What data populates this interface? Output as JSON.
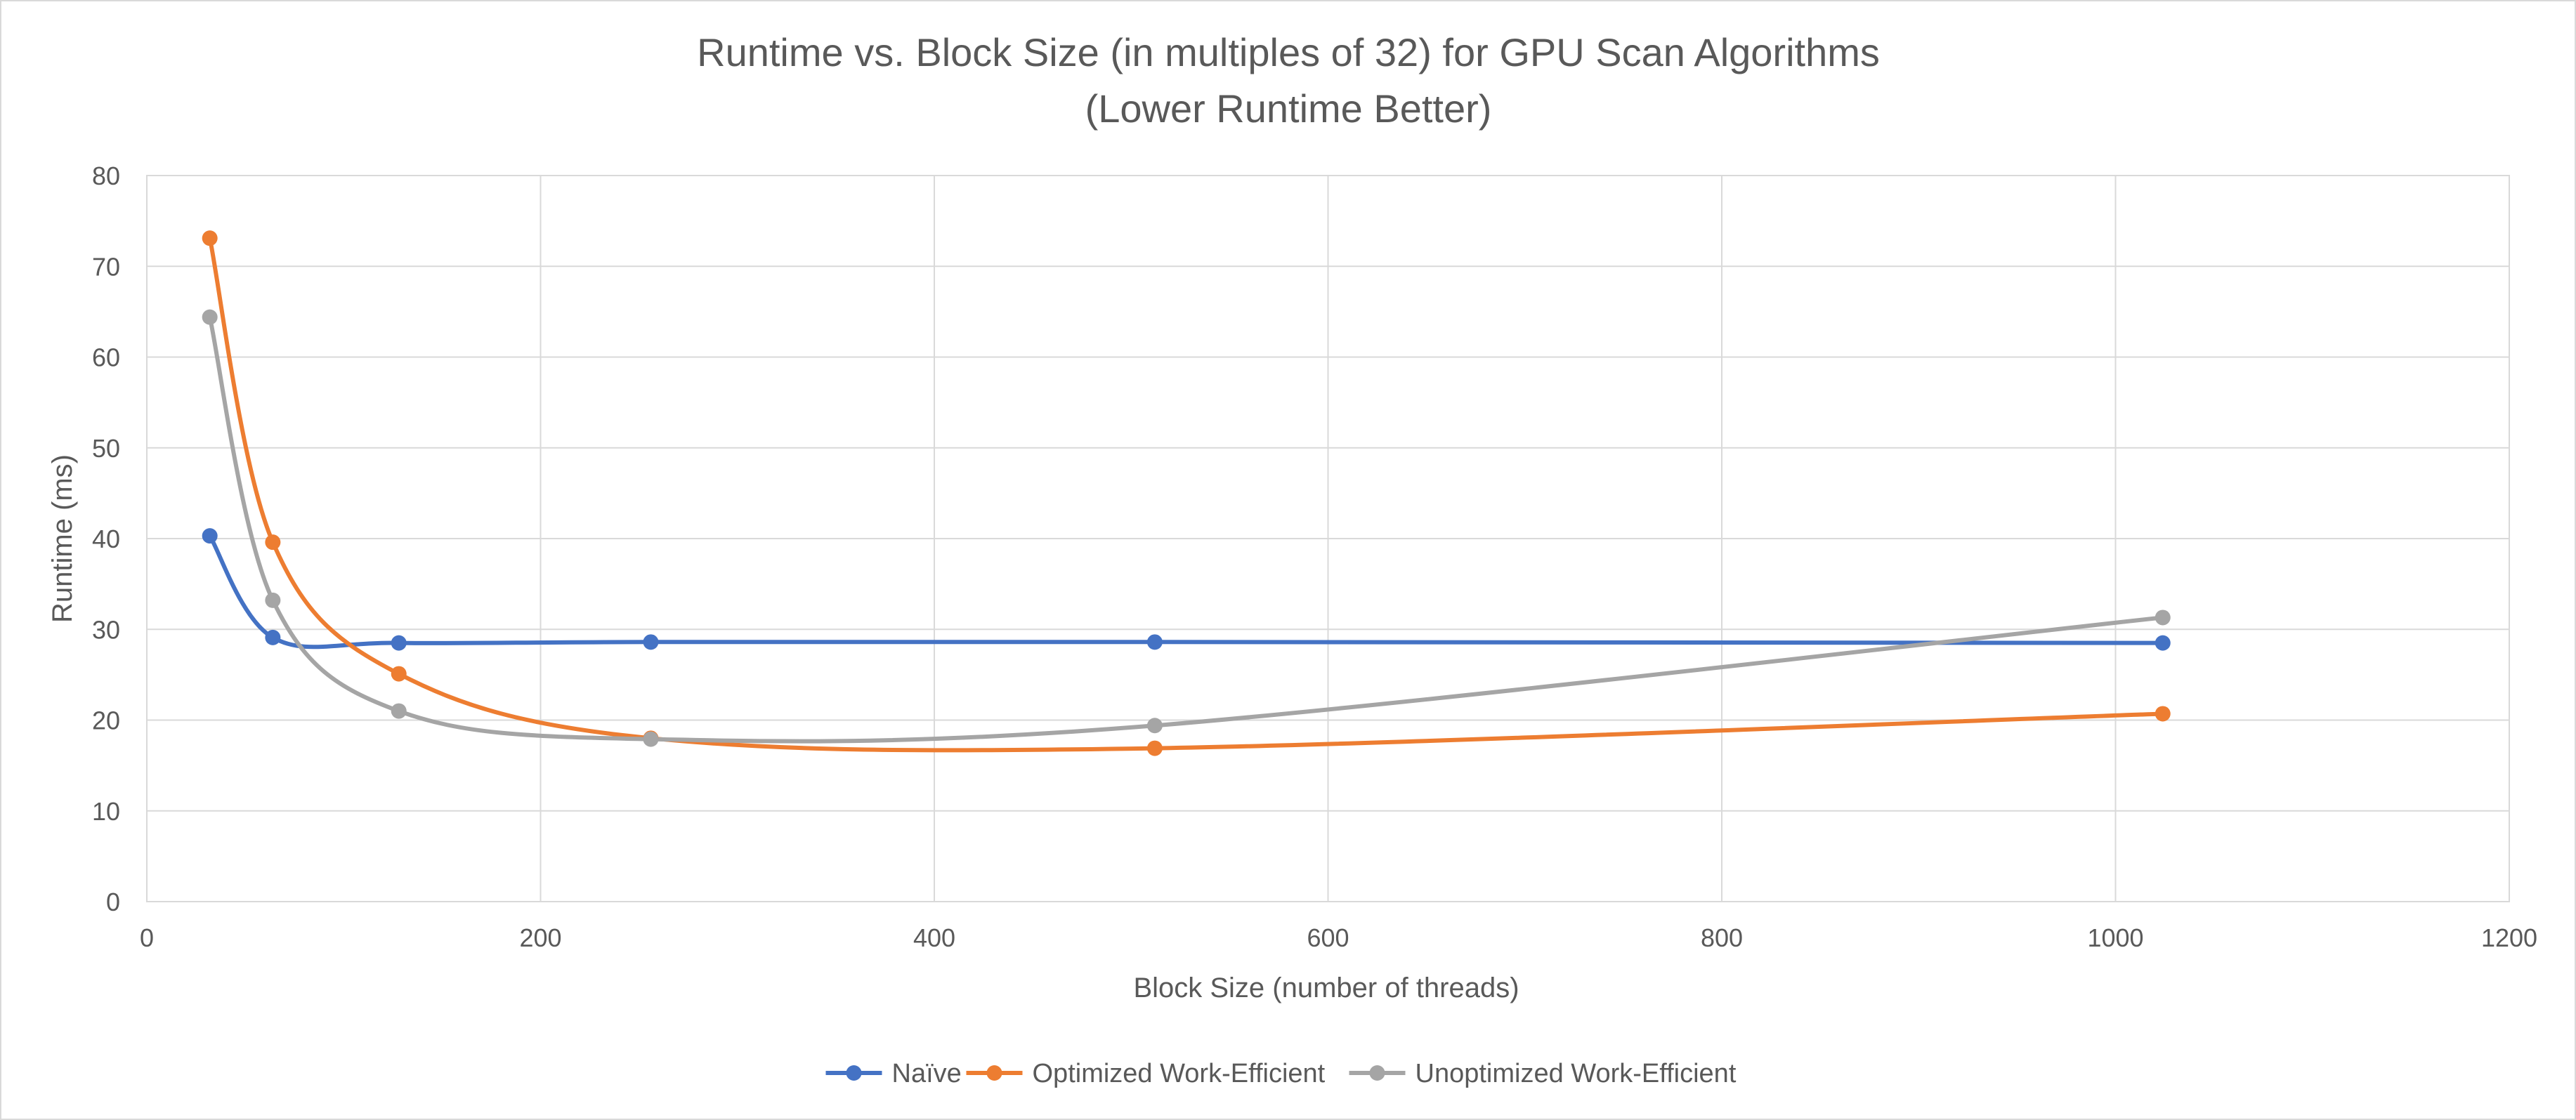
{
  "chart_data": {
    "type": "line",
    "title": "Runtime vs. Block Size (in multiples of 32) for GPU Scan Algorithms",
    "subtitle": "(Lower Runtime Better)",
    "xlabel": "Block Size (number of threads)",
    "ylabel": "Runtime (ms)",
    "xlim": [
      0,
      1200
    ],
    "ylim": [
      0,
      80
    ],
    "x_ticks": [
      0,
      200,
      400,
      600,
      800,
      1000,
      1200
    ],
    "y_ticks": [
      0,
      10,
      20,
      30,
      40,
      50,
      60,
      70,
      80
    ],
    "x_tick_labels": [
      "0",
      "200",
      "400",
      "600",
      "800",
      "1000",
      "1200"
    ],
    "y_tick_labels": [
      "0",
      "10",
      "20",
      "30",
      "40",
      "50",
      "60",
      "70",
      "80"
    ],
    "grid": true,
    "smoothed": true,
    "legend_position": "bottom",
    "x": [
      32,
      64,
      128,
      256,
      512,
      1024
    ],
    "series": [
      {
        "name": "Naïve",
        "color": "#4472c4",
        "values": [
          40.3,
          29.1,
          28.5,
          28.6,
          28.6,
          28.5
        ]
      },
      {
        "name": "Optimized Work-Efficient",
        "color": "#ed7d31",
        "values": [
          73.1,
          39.6,
          25.1,
          18.0,
          16.9,
          20.7
        ]
      },
      {
        "name": "Unoptimized Work-Efficient",
        "color": "#a5a5a5",
        "values": [
          64.4,
          33.2,
          21.0,
          17.9,
          19.4,
          31.3
        ]
      }
    ]
  }
}
